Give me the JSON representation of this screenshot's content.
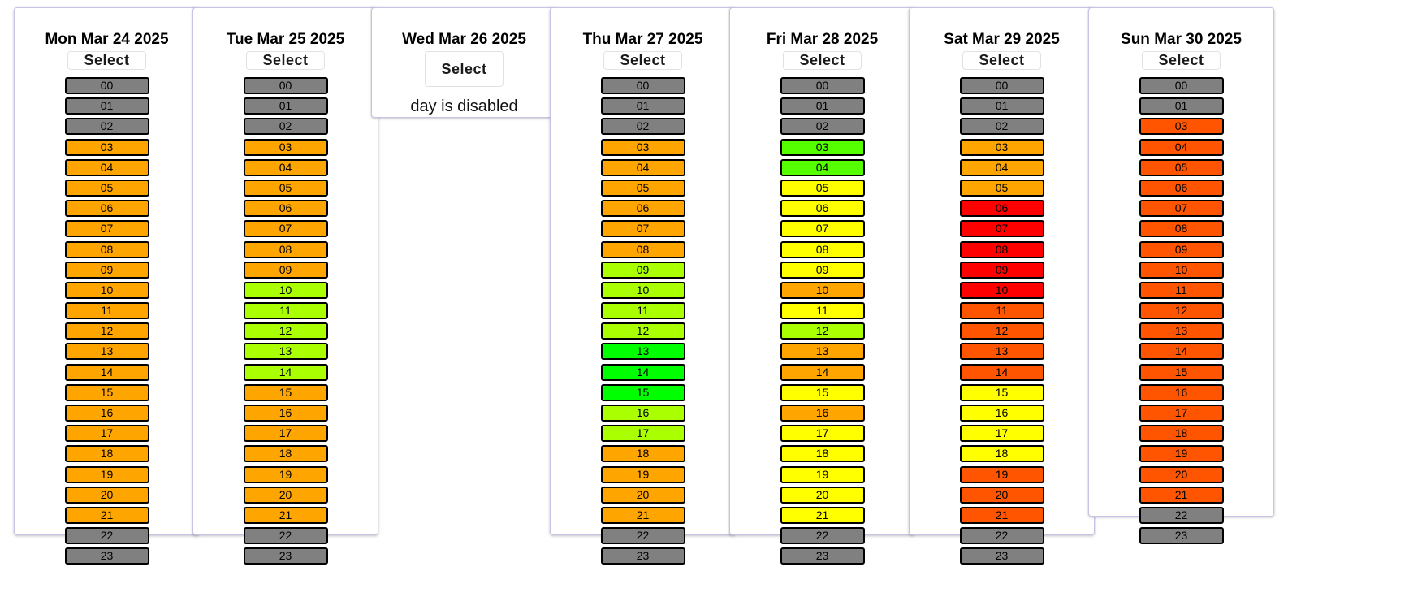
{
  "select_label": "Select",
  "days": [
    {
      "title": "Mon Mar 24 2025",
      "disabled": false,
      "hours": [
        {
          "label": "00",
          "color": "#808080"
        },
        {
          "label": "01",
          "color": "#808080"
        },
        {
          "label": "02",
          "color": "#808080"
        },
        {
          "label": "03",
          "color": "#ffa500"
        },
        {
          "label": "04",
          "color": "#ffa500"
        },
        {
          "label": "05",
          "color": "#ffa500"
        },
        {
          "label": "06",
          "color": "#ffa500"
        },
        {
          "label": "07",
          "color": "#ffa500"
        },
        {
          "label": "08",
          "color": "#ffa500"
        },
        {
          "label": "09",
          "color": "#ffa500"
        },
        {
          "label": "10",
          "color": "#ffa500"
        },
        {
          "label": "11",
          "color": "#ffa500"
        },
        {
          "label": "12",
          "color": "#ffa500"
        },
        {
          "label": "13",
          "color": "#ffa500"
        },
        {
          "label": "14",
          "color": "#ffa500"
        },
        {
          "label": "15",
          "color": "#ffa500"
        },
        {
          "label": "16",
          "color": "#ffa500"
        },
        {
          "label": "17",
          "color": "#ffa500"
        },
        {
          "label": "18",
          "color": "#ffa500"
        },
        {
          "label": "19",
          "color": "#ffa500"
        },
        {
          "label": "20",
          "color": "#ffa500"
        },
        {
          "label": "21",
          "color": "#ffa500"
        },
        {
          "label": "22",
          "color": "#808080"
        },
        {
          "label": "23",
          "color": "#808080"
        }
      ]
    },
    {
      "title": "Tue Mar 25 2025",
      "disabled": false,
      "hours": [
        {
          "label": "00",
          "color": "#808080"
        },
        {
          "label": "01",
          "color": "#808080"
        },
        {
          "label": "02",
          "color": "#808080"
        },
        {
          "label": "03",
          "color": "#ffa500"
        },
        {
          "label": "04",
          "color": "#ffa500"
        },
        {
          "label": "05",
          "color": "#ffa500"
        },
        {
          "label": "06",
          "color": "#ffa500"
        },
        {
          "label": "07",
          "color": "#ffa500"
        },
        {
          "label": "08",
          "color": "#ffa500"
        },
        {
          "label": "09",
          "color": "#ffa500"
        },
        {
          "label": "10",
          "color": "#aaff00"
        },
        {
          "label": "11",
          "color": "#aaff00"
        },
        {
          "label": "12",
          "color": "#aaff00"
        },
        {
          "label": "13",
          "color": "#aaff00"
        },
        {
          "label": "14",
          "color": "#aaff00"
        },
        {
          "label": "15",
          "color": "#ffa500"
        },
        {
          "label": "16",
          "color": "#ffa500"
        },
        {
          "label": "17",
          "color": "#ffa500"
        },
        {
          "label": "18",
          "color": "#ffa500"
        },
        {
          "label": "19",
          "color": "#ffa500"
        },
        {
          "label": "20",
          "color": "#ffa500"
        },
        {
          "label": "21",
          "color": "#ffa500"
        },
        {
          "label": "22",
          "color": "#808080"
        },
        {
          "label": "23",
          "color": "#808080"
        }
      ]
    },
    {
      "title": "Wed Mar 26 2025",
      "disabled": true,
      "disabled_text": "day is disabled",
      "hours": []
    },
    {
      "title": "Thu Mar 27 2025",
      "disabled": false,
      "hours": [
        {
          "label": "00",
          "color": "#808080"
        },
        {
          "label": "01",
          "color": "#808080"
        },
        {
          "label": "02",
          "color": "#808080"
        },
        {
          "label": "03",
          "color": "#ffa500"
        },
        {
          "label": "04",
          "color": "#ffa500"
        },
        {
          "label": "05",
          "color": "#ffa500"
        },
        {
          "label": "06",
          "color": "#ffa500"
        },
        {
          "label": "07",
          "color": "#ffa500"
        },
        {
          "label": "08",
          "color": "#ffa500"
        },
        {
          "label": "09",
          "color": "#aaff00"
        },
        {
          "label": "10",
          "color": "#aaff00"
        },
        {
          "label": "11",
          "color": "#aaff00"
        },
        {
          "label": "12",
          "color": "#aaff00"
        },
        {
          "label": "13",
          "color": "#00ff00"
        },
        {
          "label": "14",
          "color": "#00ff00"
        },
        {
          "label": "15",
          "color": "#00ff00"
        },
        {
          "label": "16",
          "color": "#aaff00"
        },
        {
          "label": "17",
          "color": "#aaff00"
        },
        {
          "label": "18",
          "color": "#ffa500"
        },
        {
          "label": "19",
          "color": "#ffa500"
        },
        {
          "label": "20",
          "color": "#ffa500"
        },
        {
          "label": "21",
          "color": "#ffa500"
        },
        {
          "label": "22",
          "color": "#808080"
        },
        {
          "label": "23",
          "color": "#808080"
        }
      ]
    },
    {
      "title": "Fri Mar 28 2025",
      "disabled": false,
      "hours": [
        {
          "label": "00",
          "color": "#808080"
        },
        {
          "label": "01",
          "color": "#808080"
        },
        {
          "label": "02",
          "color": "#808080"
        },
        {
          "label": "03",
          "color": "#55ff00"
        },
        {
          "label": "04",
          "color": "#55ff00"
        },
        {
          "label": "05",
          "color": "#ffff00"
        },
        {
          "label": "06",
          "color": "#ffff00"
        },
        {
          "label": "07",
          "color": "#ffff00"
        },
        {
          "label": "08",
          "color": "#ffff00"
        },
        {
          "label": "09",
          "color": "#ffff00"
        },
        {
          "label": "10",
          "color": "#ffa500"
        },
        {
          "label": "11",
          "color": "#ffff00"
        },
        {
          "label": "12",
          "color": "#aaff00"
        },
        {
          "label": "13",
          "color": "#ffa500"
        },
        {
          "label": "14",
          "color": "#ffa500"
        },
        {
          "label": "15",
          "color": "#ffff00"
        },
        {
          "label": "16",
          "color": "#ffa500"
        },
        {
          "label": "17",
          "color": "#ffff00"
        },
        {
          "label": "18",
          "color": "#ffff00"
        },
        {
          "label": "19",
          "color": "#ffff00"
        },
        {
          "label": "20",
          "color": "#ffff00"
        },
        {
          "label": "21",
          "color": "#ffff00"
        },
        {
          "label": "22",
          "color": "#808080"
        },
        {
          "label": "23",
          "color": "#808080"
        }
      ]
    },
    {
      "title": "Sat Mar 29 2025",
      "disabled": false,
      "hours": [
        {
          "label": "00",
          "color": "#808080"
        },
        {
          "label": "01",
          "color": "#808080"
        },
        {
          "label": "02",
          "color": "#808080"
        },
        {
          "label": "03",
          "color": "#ffa500"
        },
        {
          "label": "04",
          "color": "#ffa500"
        },
        {
          "label": "05",
          "color": "#ffa500"
        },
        {
          "label": "06",
          "color": "#ff0000"
        },
        {
          "label": "07",
          "color": "#ff0000"
        },
        {
          "label": "08",
          "color": "#ff0000"
        },
        {
          "label": "09",
          "color": "#ff0000"
        },
        {
          "label": "10",
          "color": "#ff0000"
        },
        {
          "label": "11",
          "color": "#ff5500"
        },
        {
          "label": "12",
          "color": "#ff5500"
        },
        {
          "label": "13",
          "color": "#ff5500"
        },
        {
          "label": "14",
          "color": "#ff5500"
        },
        {
          "label": "15",
          "color": "#ffff00"
        },
        {
          "label": "16",
          "color": "#ffff00"
        },
        {
          "label": "17",
          "color": "#ffff00"
        },
        {
          "label": "18",
          "color": "#ffff00"
        },
        {
          "label": "19",
          "color": "#ff5500"
        },
        {
          "label": "20",
          "color": "#ff5500"
        },
        {
          "label": "21",
          "color": "#ff5500"
        },
        {
          "label": "22",
          "color": "#808080"
        },
        {
          "label": "23",
          "color": "#808080"
        }
      ]
    },
    {
      "title": "Sun Mar 30 2025",
      "disabled": false,
      "hours": [
        {
          "label": "00",
          "color": "#808080"
        },
        {
          "label": "01",
          "color": "#808080"
        },
        {
          "label": "03",
          "color": "#ff5500"
        },
        {
          "label": "04",
          "color": "#ff5500"
        },
        {
          "label": "05",
          "color": "#ff5500"
        },
        {
          "label": "06",
          "color": "#ff5500"
        },
        {
          "label": "07",
          "color": "#ff5500"
        },
        {
          "label": "08",
          "color": "#ff5500"
        },
        {
          "label": "09",
          "color": "#ff5500"
        },
        {
          "label": "10",
          "color": "#ff5500"
        },
        {
          "label": "11",
          "color": "#ff5500"
        },
        {
          "label": "12",
          "color": "#ff5500"
        },
        {
          "label": "13",
          "color": "#ff5500"
        },
        {
          "label": "14",
          "color": "#ff5500"
        },
        {
          "label": "15",
          "color": "#ff5500"
        },
        {
          "label": "16",
          "color": "#ff5500"
        },
        {
          "label": "17",
          "color": "#ff5500"
        },
        {
          "label": "18",
          "color": "#ff5500"
        },
        {
          "label": "19",
          "color": "#ff5500"
        },
        {
          "label": "20",
          "color": "#ff5500"
        },
        {
          "label": "21",
          "color": "#ff5500"
        },
        {
          "label": "22",
          "color": "#808080"
        },
        {
          "label": "23",
          "color": "#808080"
        }
      ]
    }
  ]
}
